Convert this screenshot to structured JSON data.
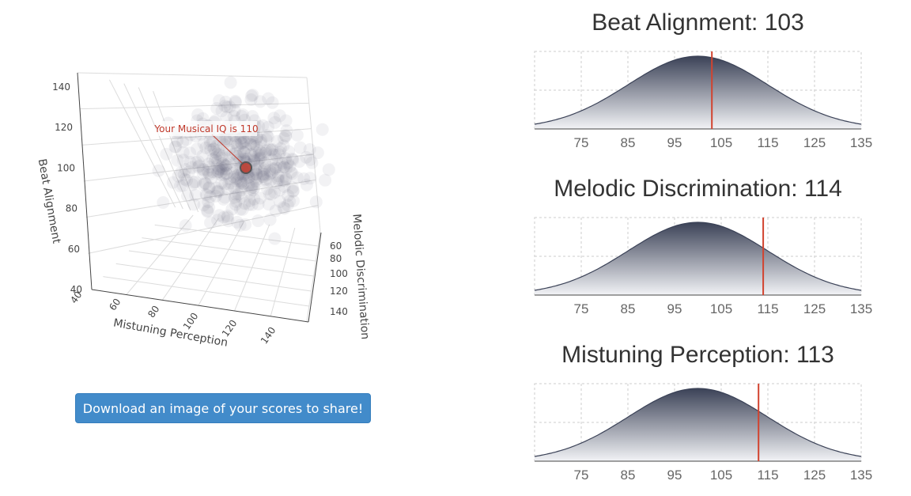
{
  "scatter": {
    "annotation": "Your Musical IQ is 110",
    "axes": {
      "x": {
        "title": "Mistuning Perception",
        "ticks": [
          "40",
          "60",
          "80",
          "100",
          "120",
          "140"
        ]
      },
      "y": {
        "title": "Melodic Discrimination",
        "ticks": [
          "60",
          "80",
          "100",
          "120",
          "140"
        ]
      },
      "z": {
        "title": "Beat Alignment",
        "ticks": [
          "40",
          "60",
          "80",
          "100",
          "120",
          "140"
        ]
      }
    },
    "colors": {
      "points": "#6b7388",
      "marker": "#c0392b",
      "annotation_text": "#c0392b"
    }
  },
  "share_button": {
    "label": "Download an image of your scores to share!"
  },
  "chart_data": [
    {
      "type": "area",
      "title": "Beat Alignment: 103",
      "x_ticks": [
        75,
        85,
        95,
        105,
        115,
        125,
        135
      ],
      "xlim": [
        65,
        135
      ],
      "distribution": {
        "mean": 100,
        "sd": 15
      },
      "score": 103
    },
    {
      "type": "area",
      "title": "Melodic Discrimination: 114",
      "x_ticks": [
        75,
        85,
        95,
        105,
        115,
        125,
        135
      ],
      "xlim": [
        65,
        135
      ],
      "distribution": {
        "mean": 100,
        "sd": 15
      },
      "score": 114
    },
    {
      "type": "area",
      "title": "Mistuning Perception: 113",
      "x_ticks": [
        75,
        85,
        95,
        105,
        115,
        125,
        135
      ],
      "xlim": [
        65,
        135
      ],
      "distribution": {
        "mean": 100,
        "sd": 15
      },
      "score": 113
    }
  ],
  "colors": {
    "curve_dark": "#3b4257",
    "curve_light": "#f2f3f6",
    "score_line": "#d2432f",
    "grid": "#cccccc"
  }
}
